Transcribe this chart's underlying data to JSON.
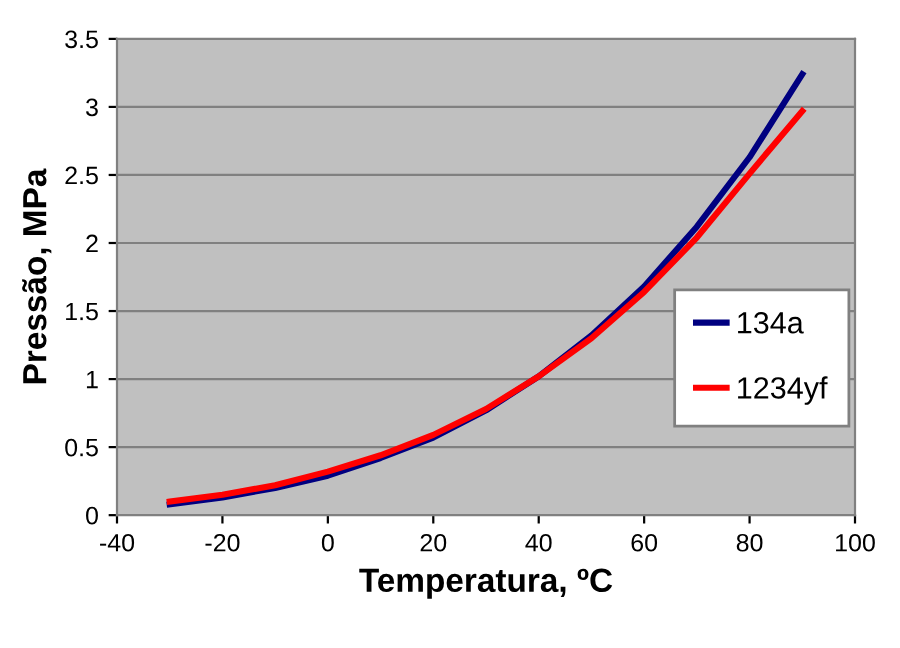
{
  "chart_data": {
    "type": "line",
    "xlabel": "Temperatura, ºC",
    "ylabel": "Pressão, MPa",
    "x": [
      -30,
      -20,
      -10,
      0,
      10,
      20,
      30,
      40,
      50,
      60,
      70,
      80,
      90
    ],
    "series": [
      {
        "name": "134a",
        "color": "#000080",
        "values": [
          0.08,
          0.13,
          0.2,
          0.29,
          0.42,
          0.57,
          0.77,
          1.02,
          1.32,
          1.68,
          2.12,
          2.63,
          3.24
        ]
      },
      {
        "name": "1234yf",
        "color": "#ff0000",
        "values": [
          0.1,
          0.15,
          0.22,
          0.32,
          0.44,
          0.59,
          0.78,
          1.02,
          1.3,
          1.64,
          2.04,
          2.51,
          2.97
        ]
      }
    ],
    "xlim": [
      -40,
      100
    ],
    "xticks": [
      -40,
      -20,
      0,
      20,
      40,
      60,
      80,
      100
    ],
    "ylim": [
      0,
      3.5
    ],
    "yticks": [
      0,
      0.5,
      1,
      1.5,
      2,
      2.5,
      3,
      3.5
    ],
    "grid": "y",
    "legend": "center right",
    "marker": "none",
    "line_style": "solid"
  }
}
